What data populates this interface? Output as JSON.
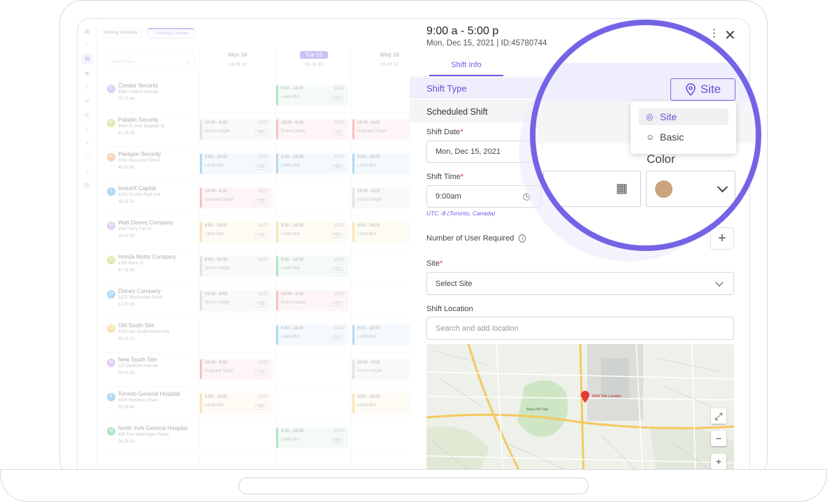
{
  "background_app": {
    "toolbar": {
      "schedule_dropdown": "Morning Schedule",
      "pending_changes": "2 Pending Changes"
    },
    "search_placeholder": "Search Site...",
    "days": [
      {
        "label": "Mon 14",
        "meta": "29  29  32"
      },
      {
        "label": "Tue 15",
        "meta": "29  29  32"
      },
      {
        "label": "Wed 16",
        "meta": "29  29  32"
      }
    ],
    "sites": [
      {
        "initial": "C",
        "color": "#b98be8",
        "name": "Condor Security",
        "address": "3592 Hodonx Avenue",
        "stats": "25   76   40"
      },
      {
        "initial": "P",
        "color": "#b6cf4a",
        "name": "Paladin Security",
        "address": "4400 St Jean Baptiste St",
        "stats": "41   26   36"
      },
      {
        "initial": "P",
        "color": "#f09a5a",
        "name": "Paragon Security",
        "address": "3331 MacLaren Street",
        "stats": "45   50   30"
      },
      {
        "initial": "I",
        "color": "#4aa7e0",
        "name": "InvestX Capital",
        "address": "4178 Victoria Park Ave",
        "stats": "45   25   31"
      },
      {
        "initial": "W",
        "color": "#b98be8",
        "name": "Walt Disney Company",
        "address": "1047 Terry Fox Dr",
        "stats": "26   20   32"
      },
      {
        "initial": "H",
        "color": "#b6cf4a",
        "name": "Honda Motor Company",
        "address": "1300 Bank St",
        "stats": "41   26   30"
      },
      {
        "initial": "D",
        "color": "#4aa7e0",
        "name": "Disney Company",
        "address": "3175 Sherbrooke Ouest",
        "stats": "51   20   29"
      },
      {
        "initial": "O",
        "color": "#f0c14a",
        "name": "Old South Site",
        "address": "4200 Old Spallumcheen Rd",
        "stats": "68   25   12"
      },
      {
        "initial": "N",
        "color": "#b98be8",
        "name": "New South Site",
        "address": "327 Danforth Avenue",
        "stats": "56   40   34"
      },
      {
        "initial": "T",
        "color": "#4aa7e0",
        "name": "Toronto General Hospital",
        "address": "4476 Hamilton Street",
        "stats": "50   35   60"
      },
      {
        "initial": "N",
        "color": "#43c26a",
        "name": "North York General Hospital",
        "address": "406 Port Washington Road",
        "stats": "36   25   32"
      }
    ],
    "cells": [
      {
        "row": 0,
        "day": 1,
        "color": "c-green",
        "time": "9:00 - 18:00",
        "user": "Lamb Mut",
        "count": "12/27",
        "extra": "+12"
      },
      {
        "row": 1,
        "day": 0,
        "color": "c-gray",
        "time": "10:00 - 6:00",
        "user": "Simon Knight",
        "count": "12/27",
        "extra": "+57"
      },
      {
        "row": 1,
        "day": 1,
        "color": "c-red",
        "time": "18:00 - 6:00",
        "user": "Emma Jonas",
        "count": "12/27",
        "extra": "+2"
      },
      {
        "row": 1,
        "day": 2,
        "color": "c-red",
        "time": "18:00 - 6:00",
        "user": "Gurpreet Singh",
        "count": "12/27",
        "extra": "+2"
      },
      {
        "row": 2,
        "day": 0,
        "color": "c-blue",
        "time": "9:00 - 18:00",
        "user": "Lamb Mut",
        "count": "12/27",
        "extra": "+32"
      },
      {
        "row": 2,
        "day": 1,
        "color": "c-blue",
        "time": "9:00 - 18:00",
        "user": "Lamb Mut",
        "count": "12/27",
        "extra": "+32"
      },
      {
        "row": 2,
        "day": 2,
        "color": "c-blue",
        "time": "9:00 - 18:00",
        "user": "Lamb Mut",
        "count": "12",
        "extra": ""
      },
      {
        "row": 3,
        "day": 0,
        "color": "c-red",
        "time": "18:00 - 6:00",
        "user": "Gurpreet Singh",
        "count": "12/27",
        "extra": "+22"
      },
      {
        "row": 3,
        "day": 2,
        "color": "c-gray",
        "time": "18:00 - 6:00",
        "user": "Simon Knight",
        "count": "12",
        "extra": ""
      },
      {
        "row": 4,
        "day": 0,
        "color": "c-yellow",
        "time": "9:00 - 18:00",
        "user": "Lamb Mut",
        "count": "12/27",
        "extra": "+32"
      },
      {
        "row": 4,
        "day": 1,
        "color": "c-yellow",
        "time": "9:00 - 18:00",
        "user": "Lamb Mut",
        "count": "12/27",
        "extra": "+32"
      },
      {
        "row": 4,
        "day": 2,
        "color": "c-yellow",
        "time": "9:00 - 18:00",
        "user": "Lamb Mut",
        "count": "12",
        "extra": ""
      },
      {
        "row": 5,
        "day": 0,
        "color": "c-gray",
        "time": "9:00 - 18:00",
        "user": "Simon Knight",
        "count": "12/27",
        "extra": ""
      },
      {
        "row": 5,
        "day": 1,
        "color": "c-green",
        "time": "9:00 - 18:00",
        "user": "Lamb Mut",
        "count": "12/27",
        "extra": "+22"
      },
      {
        "row": 6,
        "day": 0,
        "color": "c-gray",
        "time": "18:00 - 6:00",
        "user": "Simon Knight",
        "count": "12/27",
        "extra": "+32"
      },
      {
        "row": 6,
        "day": 1,
        "color": "c-red",
        "time": "18:00 - 6:00",
        "user": "Emma Jonas",
        "count": "12/27",
        "extra": "+37"
      },
      {
        "row": 7,
        "day": 1,
        "color": "c-blue",
        "time": "9:00 - 18:00",
        "user": "Lamb Mut",
        "count": "12/27",
        "extra": "+17"
      },
      {
        "row": 7,
        "day": 2,
        "color": "c-blue",
        "time": "9:00 - 18:00",
        "user": "Lamb Mut",
        "count": "12",
        "extra": ""
      },
      {
        "row": 8,
        "day": 0,
        "color": "c-red",
        "time": "18:00 - 6:00",
        "user": "Gurpreet Singh",
        "count": "12/27",
        "extra": "+17"
      },
      {
        "row": 8,
        "day": 2,
        "color": "c-gray",
        "time": "10:00 - 6:00",
        "user": "Simon Knight",
        "count": "12",
        "extra": ""
      },
      {
        "row": 9,
        "day": 0,
        "color": "c-yellow",
        "time": "9:00 - 18:00",
        "user": "Lamb Mut",
        "count": "12/27",
        "extra": "+57"
      },
      {
        "row": 9,
        "day": 2,
        "color": "c-yellow",
        "time": "9:00 - 18:00",
        "user": "Lamb Mut",
        "count": "12",
        "extra": ""
      },
      {
        "row": 10,
        "day": 1,
        "color": "c-green",
        "time": "9:00 - 18:00",
        "user": "Lamb Mut",
        "count": "12/27",
        "extra": "+22"
      }
    ]
  },
  "panel": {
    "title": "9:00 a - 5:00 p",
    "subtitle": "Mon, Dec 15, 2021 | ID:45780744",
    "tab": "Shift Info",
    "shift_type_label": "Shift Type",
    "scheduled_shift": "Scheduled Shift",
    "shift_date_label": "Shift Date",
    "shift_date_value": "Mon, Dec 15, 2021",
    "shift_time_label": "Shift Time",
    "shift_time_value": "9:00am",
    "timezone": "UTC -8 (Toronto, Canada)",
    "users_required_label": "Number of User  Required",
    "site_label": "Site",
    "site_placeholder": "Select Site",
    "location_label": "Shift Location",
    "location_placeholder": "Search and add location",
    "map_labels": {
      "park": "Nose Hill Park",
      "pin": "NEW Site Location"
    }
  },
  "magnifier": {
    "type_button": "Site",
    "options": [
      {
        "label": "Site",
        "icon": "pin-icon",
        "selected": true
      },
      {
        "label": "Basic",
        "icon": "user-icon",
        "selected": false
      }
    ],
    "color_label": "Color",
    "color_value": "#c9a47e"
  },
  "colors": {
    "accent": "#7364e6",
    "required": "#e53935"
  }
}
